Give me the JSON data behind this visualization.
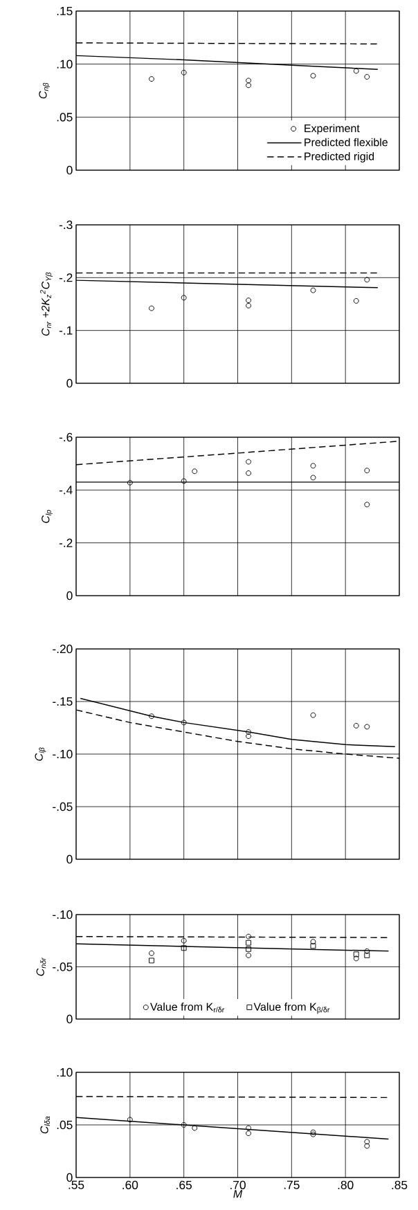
{
  "chart_data": [
    {
      "type": "line",
      "ylabel": "C$_{nβ}$",
      "xlim": [
        0.55,
        0.85
      ],
      "ylim": [
        0,
        0.15
      ],
      "xticks": [
        {
          "value": 0.55,
          "label": null
        },
        {
          "value": 0.6,
          "label": null
        },
        {
          "value": 0.65,
          "label": null
        },
        {
          "value": 0.7,
          "label": null
        },
        {
          "value": 0.75,
          "label": null
        },
        {
          "value": 0.8,
          "label": null
        },
        {
          "value": 0.85,
          "label": null
        }
      ],
      "yticks": [
        {
          "value": 0,
          "label": "0"
        },
        {
          "value": 0.05,
          "label": ".05"
        },
        {
          "value": 0.1,
          "label": ".10"
        },
        {
          "value": 0.15,
          "label": ".15"
        }
      ],
      "grid": true,
      "legend": "bottom right",
      "tick_labels": "y",
      "series": [
        {
          "name": "Experiment",
          "type": "scatter",
          "marker": "circle",
          "color": "#000000",
          "x": [
            0.62,
            0.65,
            0.71,
            0.71,
            0.77,
            0.81,
            0.82
          ],
          "values": [
            0.086,
            0.092,
            0.0845,
            0.08,
            0.089,
            0.0935,
            0.088
          ]
        },
        {
          "name": "Predicted flexible",
          "line_style": "solid",
          "color": "#000000",
          "x": [
            0.55,
            0.65,
            0.75,
            0.83
          ],
          "values": [
            0.108,
            0.104,
            0.099,
            0.095
          ]
        },
        {
          "name": "Predicted rigid",
          "line_style": "dashed",
          "color": "#000000",
          "x": [
            0.55,
            0.83
          ],
          "values": [
            0.12,
            0.119
          ]
        }
      ]
    },
    {
      "type": "line",
      "ylabel": "C$_{nr}$ +2K$_{z}$$^{2}$C$_{Yβ}$",
      "xlim": [
        0.55,
        0.85
      ],
      "ylim": [
        0,
        -0.3
      ],
      "xticks": [
        {
          "value": 0.55,
          "label": null
        },
        {
          "value": 0.6,
          "label": null
        },
        {
          "value": 0.65,
          "label": null
        },
        {
          "value": 0.7,
          "label": null
        },
        {
          "value": 0.75,
          "label": null
        },
        {
          "value": 0.8,
          "label": null
        },
        {
          "value": 0.85,
          "label": null
        }
      ],
      "yticks": [
        {
          "value": 0,
          "label": "0"
        },
        {
          "value": -0.1,
          "label": "-.1"
        },
        {
          "value": -0.2,
          "label": "-.2"
        },
        {
          "value": -0.3,
          "label": "-.3"
        }
      ],
      "grid": true,
      "tick_labels": "y",
      "series": [
        {
          "type": "scatter",
          "marker": "circle",
          "color": "#000000",
          "x": [
            0.62,
            0.65,
            0.71,
            0.71,
            0.77,
            0.81,
            0.82
          ],
          "values": [
            -0.142,
            -0.162,
            -0.157,
            -0.147,
            -0.176,
            -0.156,
            -0.196
          ]
        },
        {
          "line_style": "solid",
          "color": "#000000",
          "x": [
            0.55,
            0.83
          ],
          "values": [
            -0.195,
            -0.181
          ]
        },
        {
          "line_style": "dashed",
          "color": "#000000",
          "x": [
            0.55,
            0.83
          ],
          "values": [
            -0.209,
            -0.209
          ]
        }
      ]
    },
    {
      "type": "line",
      "ylabel": "C$_{lp}$",
      "xlim": [
        0.55,
        0.85
      ],
      "ylim": [
        0,
        -0.6
      ],
      "xticks": [
        {
          "value": 0.55,
          "label": null
        },
        {
          "value": 0.6,
          "label": null
        },
        {
          "value": 0.65,
          "label": null
        },
        {
          "value": 0.7,
          "label": null
        },
        {
          "value": 0.75,
          "label": null
        },
        {
          "value": 0.8,
          "label": null
        },
        {
          "value": 0.85,
          "label": null
        }
      ],
      "yticks": [
        {
          "value": 0,
          "label": "0"
        },
        {
          "value": -0.2,
          "label": "-.2"
        },
        {
          "value": -0.4,
          "label": "-.4"
        },
        {
          "value": -0.6,
          "label": "-.6"
        }
      ],
      "grid": true,
      "tick_labels": "y",
      "series": [
        {
          "type": "scatter",
          "marker": "circle",
          "color": "#000000",
          "x": [
            0.6,
            0.65,
            0.66,
            0.71,
            0.71,
            0.77,
            0.77,
            0.82,
            0.82
          ],
          "values": [
            -0.428,
            -0.434,
            -0.471,
            -0.507,
            -0.464,
            -0.492,
            -0.447,
            -0.474,
            -0.345
          ]
        },
        {
          "line_style": "solid",
          "color": "#000000",
          "x": [
            0.55,
            0.85
          ],
          "values": [
            -0.43,
            -0.43
          ]
        },
        {
          "line_style": "dashed",
          "color": "#000000",
          "x": [
            0.55,
            0.7,
            0.85
          ],
          "values": [
            -0.496,
            -0.54,
            -0.585
          ]
        }
      ]
    },
    {
      "type": "line",
      "ylabel": "C$_{lβ}$",
      "xlim": [
        0.55,
        0.85
      ],
      "ylim": [
        0,
        -0.2
      ],
      "xticks": [
        {
          "value": 0.55,
          "label": null
        },
        {
          "value": 0.6,
          "label": null
        },
        {
          "value": 0.65,
          "label": null
        },
        {
          "value": 0.7,
          "label": null
        },
        {
          "value": 0.75,
          "label": null
        },
        {
          "value": 0.8,
          "label": null
        },
        {
          "value": 0.85,
          "label": null
        }
      ],
      "yticks": [
        {
          "value": 0,
          "label": "0"
        },
        {
          "value": -0.05,
          "label": "-.05"
        },
        {
          "value": -0.1,
          "label": "-.10"
        },
        {
          "value": -0.15,
          "label": "-.15"
        },
        {
          "value": -0.2,
          "label": "-.20"
        }
      ],
      "grid": true,
      "tick_labels": "y",
      "series": [
        {
          "type": "scatter",
          "marker": "circle",
          "color": "#000000",
          "x": [
            0.62,
            0.65,
            0.71,
            0.71,
            0.77,
            0.81,
            0.82
          ],
          "values": [
            -0.136,
            -0.13,
            -0.121,
            -0.117,
            -0.137,
            -0.127,
            -0.126
          ]
        },
        {
          "line_style": "solid",
          "color": "#000000",
          "x": [
            0.554,
            0.62,
            0.65,
            0.71,
            0.75,
            0.8,
            0.846
          ],
          "values": [
            -0.153,
            -0.136,
            -0.13,
            -0.121,
            -0.114,
            -0.109,
            -0.107
          ]
        },
        {
          "line_style": "dashed",
          "color": "#000000",
          "x": [
            0.55,
            0.6,
            0.65,
            0.7,
            0.75,
            0.8,
            0.85
          ],
          "values": [
            -0.142,
            -0.13,
            -0.121,
            -0.112,
            -0.105,
            -0.1,
            -0.096
          ]
        }
      ]
    },
    {
      "type": "line",
      "ylabel": "C$_{nδr}$",
      "xlim": [
        0.55,
        0.85
      ],
      "ylim": [
        0,
        -0.1
      ],
      "xticks": [
        {
          "value": 0.55,
          "label": null
        },
        {
          "value": 0.6,
          "label": null
        },
        {
          "value": 0.65,
          "label": null
        },
        {
          "value": 0.7,
          "label": null
        },
        {
          "value": 0.75,
          "label": null
        },
        {
          "value": 0.8,
          "label": null
        },
        {
          "value": 0.85,
          "label": null
        }
      ],
      "yticks": [
        {
          "value": 0,
          "label": "0"
        },
        {
          "value": -0.05,
          "label": "-.05"
        },
        {
          "value": -0.1,
          "label": "-.10"
        }
      ],
      "grid": true,
      "legend": "bottom",
      "tick_labels": "y",
      "series": [
        {
          "name": "Value from K$_{r/δr}$",
          "type": "scatter",
          "marker": "circle",
          "color": "#000000",
          "x": [
            0.62,
            0.65,
            0.71,
            0.71,
            0.77,
            0.81,
            0.82
          ],
          "values": [
            -0.063,
            -0.075,
            -0.079,
            -0.061,
            -0.074,
            -0.058,
            -0.065
          ]
        },
        {
          "name": "Value from K$_{β/δr}$",
          "type": "scatter",
          "marker": "square",
          "color": "#000000",
          "x": [
            0.62,
            0.65,
            0.71,
            0.71,
            0.77,
            0.81,
            0.82
          ],
          "values": [
            -0.056,
            -0.068,
            -0.073,
            -0.067,
            -0.07,
            -0.062,
            -0.061
          ]
        },
        {
          "line_style": "solid",
          "color": "#000000",
          "x": [
            0.55,
            0.84
          ],
          "values": [
            -0.072,
            -0.065
          ]
        },
        {
          "line_style": "dashed",
          "color": "#000000",
          "x": [
            0.55,
            0.84
          ],
          "values": [
            -0.079,
            -0.078
          ]
        }
      ]
    },
    {
      "type": "line",
      "ylabel": "C$_{lδa}$",
      "xlabel": "M",
      "xlim": [
        0.55,
        0.85
      ],
      "ylim": [
        0,
        0.1
      ],
      "xticks": [
        {
          "value": 0.55,
          "label": ".55"
        },
        {
          "value": 0.6,
          "label": ".60"
        },
        {
          "value": 0.65,
          "label": ".65"
        },
        {
          "value": 0.7,
          "label": ".70"
        },
        {
          "value": 0.75,
          "label": ".75"
        },
        {
          "value": 0.8,
          "label": ".80"
        },
        {
          "value": 0.85,
          "label": ".85"
        }
      ],
      "yticks": [
        {
          "value": 0,
          "label": "0"
        },
        {
          "value": 0.05,
          "label": ".05"
        },
        {
          "value": 0.1,
          "label": ".10"
        }
      ],
      "grid": true,
      "series": [
        {
          "type": "scatter",
          "marker": "circle",
          "color": "#000000",
          "x": [
            0.6,
            0.65,
            0.66,
            0.71,
            0.71,
            0.77,
            0.77,
            0.82,
            0.82
          ],
          "values": [
            0.055,
            0.05,
            0.047,
            0.047,
            0.042,
            0.043,
            0.041,
            0.034,
            0.03
          ]
        },
        {
          "line_style": "solid",
          "color": "#000000",
          "x": [
            0.55,
            0.84
          ],
          "values": [
            0.057,
            0.0365
          ]
        },
        {
          "line_style": "dashed",
          "color": "#000000",
          "x": [
            0.55,
            0.84
          ],
          "values": [
            0.077,
            0.076
          ]
        }
      ]
    }
  ]
}
